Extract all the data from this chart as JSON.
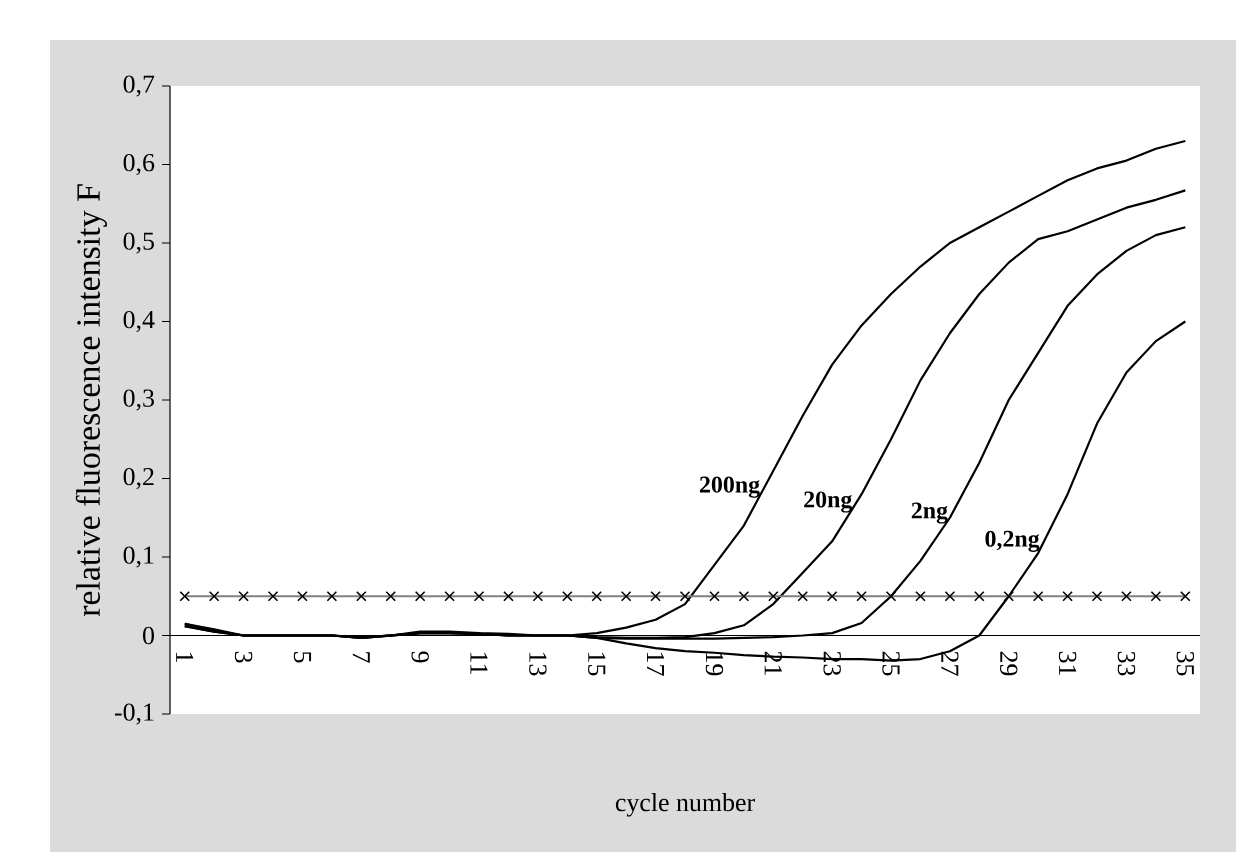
{
  "chart_data": {
    "type": "line",
    "xlabel": "cycle number",
    "ylabel": "relative fluorescence intensity F",
    "x": [
      1,
      2,
      3,
      4,
      5,
      6,
      7,
      8,
      9,
      10,
      11,
      12,
      13,
      14,
      15,
      16,
      17,
      18,
      19,
      20,
      21,
      22,
      23,
      24,
      25,
      26,
      27,
      28,
      29,
      30,
      31,
      32,
      33,
      34,
      35
    ],
    "xlim": [
      0.5,
      35.5
    ],
    "xticks": [
      1,
      3,
      5,
      7,
      9,
      11,
      13,
      15,
      17,
      19,
      21,
      23,
      25,
      27,
      29,
      31,
      33,
      35
    ],
    "ylim": [
      -0.1,
      0.7
    ],
    "yticks": [
      {
        "value": -0.1,
        "label": "-0,1"
      },
      0,
      {
        "value": 0.1,
        "label": "0,1"
      },
      {
        "value": 0.2,
        "label": "0,2"
      },
      {
        "value": 0.3,
        "label": "0,3"
      },
      {
        "value": 0.4,
        "label": "0,4"
      },
      {
        "value": 0.5,
        "label": "0,5"
      },
      {
        "value": 0.6,
        "label": "0,6"
      },
      {
        "value": 0.7,
        "label": "0,7"
      }
    ],
    "grid": false,
    "legend": false,
    "series": [
      {
        "name": "200ng",
        "color": "#000000",
        "values": [
          0.015,
          0.008,
          0,
          0,
          0,
          0,
          -0.002,
          0,
          0.005,
          0.005,
          0.003,
          0.002,
          0,
          0,
          0.003,
          0.01,
          0.02,
          0.04,
          0.09,
          0.14,
          0.21,
          0.28,
          0.345,
          0.395,
          0.435,
          0.47,
          0.5,
          0.52,
          0.54,
          0.56,
          0.58,
          0.595,
          0.605,
          0.62,
          0.63
        ]
      },
      {
        "name": "20ng",
        "color": "#000000",
        "values": [
          0.012,
          0.005,
          0,
          0,
          0,
          0,
          -0.003,
          0,
          0.003,
          0.003,
          0.002,
          0,
          0,
          0,
          -0.002,
          -0.003,
          -0.003,
          -0.002,
          0.003,
          0.013,
          0.04,
          0.08,
          0.12,
          0.18,
          0.25,
          0.325,
          0.385,
          0.435,
          0.475,
          0.505,
          0.515,
          0.53,
          0.545,
          0.555,
          0.567
        ]
      },
      {
        "name": "2ng",
        "color": "#000000",
        "values": [
          0.012,
          0.005,
          0,
          0,
          0,
          0,
          -0.003,
          0,
          0.003,
          0.003,
          0.002,
          0,
          0,
          0,
          -0.003,
          -0.004,
          -0.004,
          -0.004,
          -0.004,
          -0.003,
          -0.002,
          0,
          0.003,
          0.016,
          0.05,
          0.095,
          0.15,
          0.22,
          0.3,
          0.36,
          0.42,
          0.46,
          0.49,
          0.51,
          0.52
        ]
      },
      {
        "name": "0,2ng",
        "color": "#000000",
        "values": [
          0.015,
          0.006,
          0,
          0,
          0,
          0,
          -0.003,
          0,
          0.003,
          0.003,
          0.002,
          0,
          0,
          0,
          -0.003,
          -0.01,
          -0.016,
          -0.02,
          -0.022,
          -0.025,
          -0.027,
          -0.028,
          -0.03,
          -0.03,
          -0.032,
          -0.03,
          -0.02,
          0,
          0.05,
          0.105,
          0.18,
          0.27,
          0.335,
          0.375,
          0.4
        ]
      },
      {
        "color": "#808080",
        "marker": "cross",
        "values": [
          0.05,
          0.05,
          0.05,
          0.05,
          0.05,
          0.05,
          0.05,
          0.05,
          0.05,
          0.05,
          0.05,
          0.05,
          0.05,
          0.05,
          0.05,
          0.05,
          0.05,
          0.05,
          0.05,
          0.05,
          0.05,
          0.05,
          0.05,
          0.05,
          0.05,
          0.05,
          0.05,
          0.05,
          0.05,
          0.05,
          0.05,
          0.05,
          0.05,
          0.05,
          0.05
        ]
      }
    ]
  }
}
